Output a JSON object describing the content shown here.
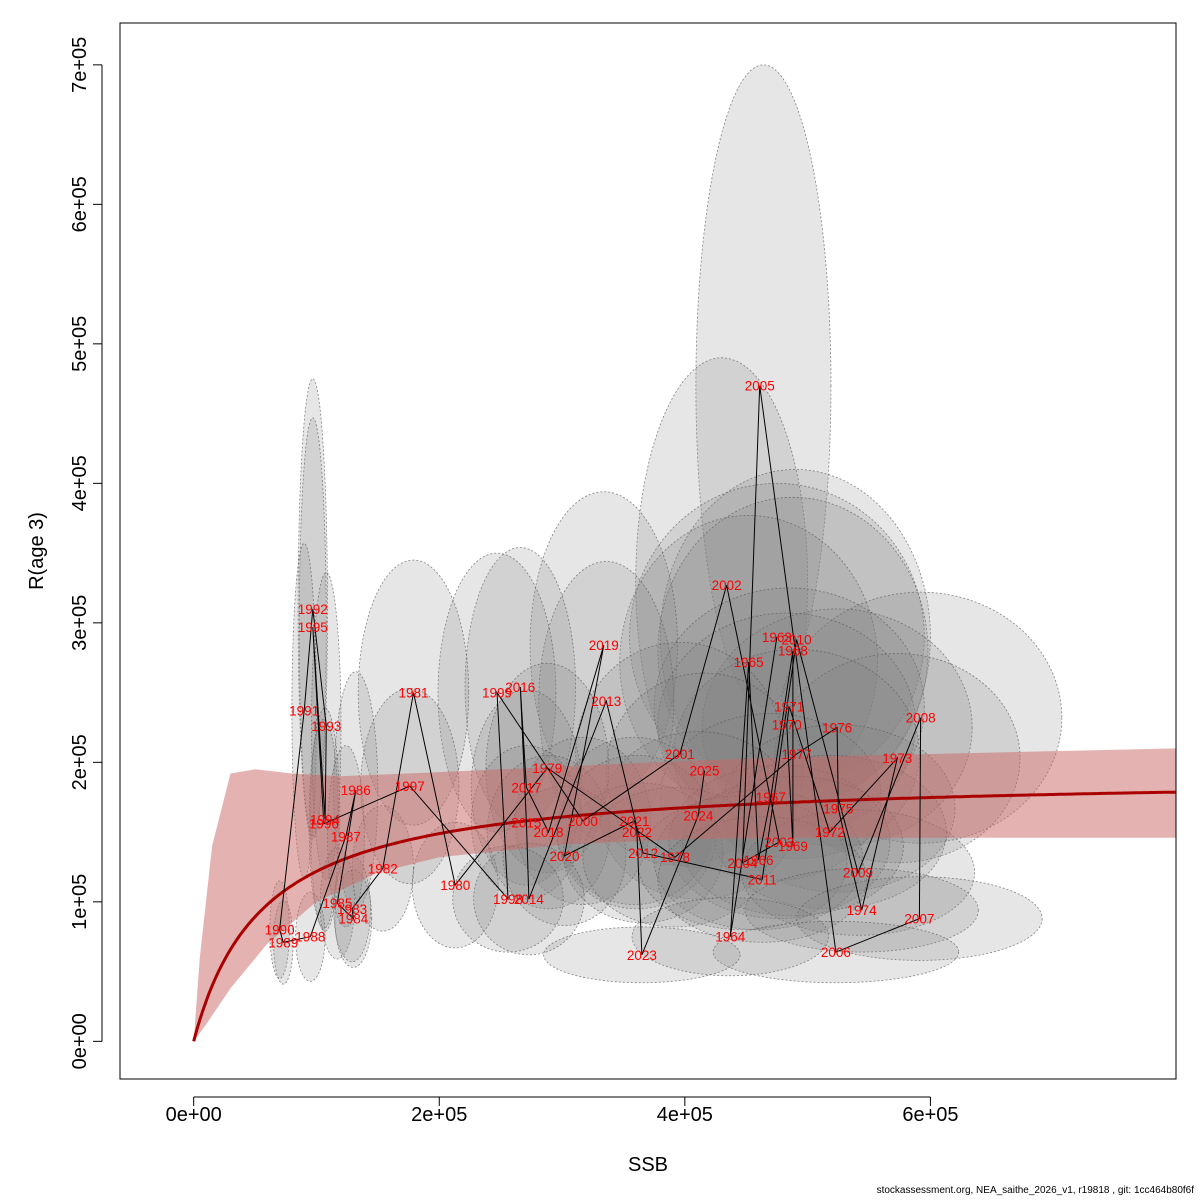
{
  "chart_data": {
    "type": "scatter",
    "xlabel": "SSB",
    "ylabel": "R(age 3)",
    "xlim": [
      -60000,
      800000
    ],
    "ylim": [
      -27000,
      730000
    ],
    "x_ticks": [
      0,
      200000,
      400000,
      600000
    ],
    "x_tick_labels": [
      "0e+00",
      "2e+05",
      "4e+05",
      "6e+05"
    ],
    "y_ticks": [
      0,
      100000,
      200000,
      300000,
      400000,
      500000,
      600000,
      700000
    ],
    "y_tick_labels": [
      "0e+00",
      "1e+05",
      "2e+05",
      "3e+05",
      "4e+05",
      "5e+05",
      "6e+05",
      "7e+05"
    ],
    "colors": {
      "year_label": "#ff0000",
      "trajectory": "#000000",
      "ellipse_fill": "#808080",
      "fit_line": "#aa0000",
      "fit_band": "#cc6666"
    },
    "points": [
      {
        "year": "1963",
        "ssb": 475000,
        "r": 290000
      },
      {
        "year": "1964",
        "ssb": 437000,
        "r": 75000
      },
      {
        "year": "1965",
        "ssb": 452000,
        "r": 272000
      },
      {
        "year": "1966",
        "ssb": 460000,
        "r": 130000
      },
      {
        "year": "1967",
        "ssb": 470000,
        "r": 175000
      },
      {
        "year": "1968",
        "ssb": 488000,
        "r": 280000
      },
      {
        "year": "1969",
        "ssb": 488000,
        "r": 140000
      },
      {
        "year": "1970",
        "ssb": 483000,
        "r": 227000
      },
      {
        "year": "1971",
        "ssb": 485000,
        "r": 240000
      },
      {
        "year": "1972",
        "ssb": 518000,
        "r": 150000
      },
      {
        "year": "1973",
        "ssb": 573000,
        "r": 203000
      },
      {
        "year": "1974",
        "ssb": 544000,
        "r": 94000
      },
      {
        "year": "1975",
        "ssb": 525000,
        "r": 167000
      },
      {
        "year": "1976",
        "ssb": 524000,
        "r": 225000
      },
      {
        "year": "1977",
        "ssb": 491000,
        "r": 206000
      },
      {
        "year": "1978",
        "ssb": 392000,
        "r": 132000
      },
      {
        "year": "1979",
        "ssb": 288000,
        "r": 196000
      },
      {
        "year": "1980",
        "ssb": 213000,
        "r": 112000
      },
      {
        "year": "1981",
        "ssb": 179000,
        "r": 250000
      },
      {
        "year": "1982",
        "ssb": 154000,
        "r": 124000
      },
      {
        "year": "1983",
        "ssb": 129000,
        "r": 95000
      },
      {
        "year": "1984",
        "ssb": 130000,
        "r": 88000
      },
      {
        "year": "1985",
        "ssb": 117000,
        "r": 99000
      },
      {
        "year": "1986",
        "ssb": 132000,
        "r": 180000
      },
      {
        "year": "1987",
        "ssb": 124000,
        "r": 147000
      },
      {
        "year": "1988",
        "ssb": 95000,
        "r": 75000
      },
      {
        "year": "1989",
        "ssb": 73000,
        "r": 71000
      },
      {
        "year": "1990",
        "ssb": 70000,
        "r": 80000
      },
      {
        "year": "1991",
        "ssb": 90000,
        "r": 237000
      },
      {
        "year": "1992",
        "ssb": 97000,
        "r": 310000
      },
      {
        "year": "1993",
        "ssb": 108000,
        "r": 226000
      },
      {
        "year": "1994",
        "ssb": 107000,
        "r": 159000
      },
      {
        "year": "1995",
        "ssb": 97000,
        "r": 297000
      },
      {
        "year": "1996",
        "ssb": 106000,
        "r": 156000
      },
      {
        "year": "1997",
        "ssb": 176000,
        "r": 183000
      },
      {
        "year": "1998",
        "ssb": 256000,
        "r": 102000
      },
      {
        "year": "1999",
        "ssb": 247000,
        "r": 250000
      },
      {
        "year": "2000",
        "ssb": 317000,
        "r": 158000
      },
      {
        "year": "2001",
        "ssb": 396000,
        "r": 206000
      },
      {
        "year": "2002",
        "ssb": 434000,
        "r": 327000
      },
      {
        "year": "2003",
        "ssb": 477000,
        "r": 143000
      },
      {
        "year": "2004",
        "ssb": 447000,
        "r": 128000
      },
      {
        "year": "2005",
        "ssb": 461000,
        "r": 470000
      },
      {
        "year": "2006",
        "ssb": 523000,
        "r": 64000
      },
      {
        "year": "2007",
        "ssb": 591000,
        "r": 88000
      },
      {
        "year": "2008",
        "ssb": 592000,
        "r": 232000
      },
      {
        "year": "2009",
        "ssb": 541000,
        "r": 121000
      },
      {
        "year": "2010",
        "ssb": 491000,
        "r": 288000
      },
      {
        "year": "2011",
        "ssb": 463000,
        "r": 116000
      },
      {
        "year": "2012",
        "ssb": 366000,
        "r": 135000
      },
      {
        "year": "2013",
        "ssb": 336000,
        "r": 244000
      },
      {
        "year": "2014",
        "ssb": 273000,
        "r": 102000
      },
      {
        "year": "2015",
        "ssb": 271000,
        "r": 157000
      },
      {
        "year": "2016",
        "ssb": 266000,
        "r": 254000
      },
      {
        "year": "2017",
        "ssb": 271000,
        "r": 182000
      },
      {
        "year": "2018",
        "ssb": 289000,
        "r": 150000
      },
      {
        "year": "2019",
        "ssb": 334000,
        "r": 284000
      },
      {
        "year": "2020",
        "ssb": 302000,
        "r": 133000
      },
      {
        "year": "2021",
        "ssb": 359000,
        "r": 158000
      },
      {
        "year": "2022",
        "ssb": 361000,
        "r": 150000
      },
      {
        "year": "2023",
        "ssb": 365000,
        "r": 62000
      },
      {
        "year": "2024",
        "ssb": 411000,
        "r": 162000
      },
      {
        "year": "2025",
        "ssb": 416000,
        "r": 194000
      }
    ],
    "ellipses": [
      {
        "year": "2005",
        "ssb": 464000,
        "r": 470000,
        "sx": 55000,
        "sy": 230000
      },
      {
        "year": "2002",
        "ssb": 430000,
        "r": 330000,
        "sx": 70000,
        "sy": 160000
      },
      {
        "year": "2010",
        "ssb": 490000,
        "r": 290000,
        "sx": 110000,
        "sy": 120000
      },
      {
        "year": "1963",
        "ssb": 475000,
        "r": 290000,
        "sx": 120000,
        "sy": 110000
      },
      {
        "year": "1968",
        "ssb": 488000,
        "r": 280000,
        "sx": 110000,
        "sy": 110000
      },
      {
        "year": "1965",
        "ssb": 452000,
        "r": 272000,
        "sx": 105000,
        "sy": 105000
      },
      {
        "year": "2019",
        "ssb": 334000,
        "r": 284000,
        "sx": 60000,
        "sy": 110000
      },
      {
        "year": "2008",
        "ssb": 592000,
        "r": 232000,
        "sx": 115000,
        "sy": 90000
      },
      {
        "year": "1976",
        "ssb": 524000,
        "r": 225000,
        "sx": 110000,
        "sy": 85000
      },
      {
        "year": "1971",
        "ssb": 485000,
        "r": 240000,
        "sx": 110000,
        "sy": 85000
      },
      {
        "year": "1970",
        "ssb": 483000,
        "r": 227000,
        "sx": 105000,
        "sy": 80000
      },
      {
        "year": "2013",
        "ssb": 336000,
        "r": 244000,
        "sx": 55000,
        "sy": 100000
      },
      {
        "year": "2016",
        "ssb": 266000,
        "r": 254000,
        "sx": 45000,
        "sy": 100000
      },
      {
        "year": "1999",
        "ssb": 247000,
        "r": 250000,
        "sx": 48000,
        "sy": 100000
      },
      {
        "year": "1981",
        "ssb": 179000,
        "r": 250000,
        "sx": 45000,
        "sy": 95000
      },
      {
        "year": "1973",
        "ssb": 573000,
        "r": 203000,
        "sx": 100000,
        "sy": 75000
      },
      {
        "year": "1977",
        "ssb": 491000,
        "r": 206000,
        "sx": 100000,
        "sy": 75000
      },
      {
        "year": "2001",
        "ssb": 396000,
        "r": 206000,
        "sx": 85000,
        "sy": 80000
      },
      {
        "year": "2025",
        "ssb": 416000,
        "r": 194000,
        "sx": 80000,
        "sy": 70000
      },
      {
        "year": "1979",
        "ssb": 288000,
        "r": 196000,
        "sx": 50000,
        "sy": 75000
      },
      {
        "year": "2017",
        "ssb": 271000,
        "r": 182000,
        "sx": 45000,
        "sy": 70000
      },
      {
        "year": "1997",
        "ssb": 176000,
        "r": 183000,
        "sx": 40000,
        "sy": 70000
      },
      {
        "year": "1992",
        "ssb": 97000,
        "r": 310000,
        "sx": 12000,
        "sy": 165000
      },
      {
        "year": "1995",
        "ssb": 97000,
        "r": 297000,
        "sx": 11000,
        "sy": 150000
      },
      {
        "year": "1991",
        "ssb": 90000,
        "r": 237000,
        "sx": 10000,
        "sy": 120000
      },
      {
        "year": "1993",
        "ssb": 108000,
        "r": 226000,
        "sx": 12000,
        "sy": 110000
      },
      {
        "year": "1986",
        "ssb": 132000,
        "r": 180000,
        "sx": 18000,
        "sy": 85000
      },
      {
        "year": "1994",
        "ssb": 107000,
        "r": 159000,
        "sx": 12000,
        "sy": 80000
      },
      {
        "year": "1996",
        "ssb": 106000,
        "r": 156000,
        "sx": 12000,
        "sy": 75000
      },
      {
        "year": "1987",
        "ssb": 124000,
        "r": 147000,
        "sx": 15000,
        "sy": 65000
      },
      {
        "year": "1967",
        "ssb": 470000,
        "r": 175000,
        "sx": 90000,
        "sy": 60000
      },
      {
        "year": "1975",
        "ssb": 525000,
        "r": 167000,
        "sx": 95000,
        "sy": 60000
      },
      {
        "year": "2024",
        "ssb": 411000,
        "r": 162000,
        "sx": 80000,
        "sy": 60000
      },
      {
        "year": "2021",
        "ssb": 359000,
        "r": 158000,
        "sx": 65000,
        "sy": 60000
      },
      {
        "year": "2000",
        "ssb": 317000,
        "r": 158000,
        "sx": 55000,
        "sy": 60000
      },
      {
        "year": "2015",
        "ssb": 271000,
        "r": 157000,
        "sx": 45000,
        "sy": 55000
      },
      {
        "year": "2018",
        "ssb": 289000,
        "r": 150000,
        "sx": 50000,
        "sy": 55000
      },
      {
        "year": "1972",
        "ssb": 518000,
        "r": 150000,
        "sx": 95000,
        "sy": 55000
      },
      {
        "year": "2022",
        "ssb": 361000,
        "r": 150000,
        "sx": 65000,
        "sy": 55000
      },
      {
        "year": "2003",
        "ssb": 477000,
        "r": 143000,
        "sx": 90000,
        "sy": 55000
      },
      {
        "year": "1969",
        "ssb": 488000,
        "r": 140000,
        "sx": 90000,
        "sy": 50000
      },
      {
        "year": "2012",
        "ssb": 366000,
        "r": 135000,
        "sx": 65000,
        "sy": 50000
      },
      {
        "year": "2020",
        "ssb": 302000,
        "r": 133000,
        "sx": 50000,
        "sy": 50000
      },
      {
        "year": "1978",
        "ssb": 392000,
        "r": 132000,
        "sx": 75000,
        "sy": 50000
      },
      {
        "year": "1966",
        "ssb": 460000,
        "r": 130000,
        "sx": 85000,
        "sy": 50000
      },
      {
        "year": "2004",
        "ssb": 447000,
        "r": 128000,
        "sx": 85000,
        "sy": 48000
      },
      {
        "year": "1982",
        "ssb": 154000,
        "r": 124000,
        "sx": 25000,
        "sy": 45000
      },
      {
        "year": "2009",
        "ssb": 541000,
        "r": 121000,
        "sx": 95000,
        "sy": 45000
      },
      {
        "year": "2011",
        "ssb": 463000,
        "r": 116000,
        "sx": 85000,
        "sy": 45000
      },
      {
        "year": "1980",
        "ssb": 213000,
        "r": 112000,
        "sx": 35000,
        "sy": 45000
      },
      {
        "year": "2014",
        "ssb": 273000,
        "r": 102000,
        "sx": 45000,
        "sy": 40000
      },
      {
        "year": "1998",
        "ssb": 256000,
        "r": 102000,
        "sx": 45000,
        "sy": 38000
      },
      {
        "year": "1985",
        "ssb": 117000,
        "r": 99000,
        "sx": 14000,
        "sy": 40000
      },
      {
        "year": "1983",
        "ssb": 129000,
        "r": 95000,
        "sx": 15000,
        "sy": 38000
      },
      {
        "year": "1974",
        "ssb": 544000,
        "r": 94000,
        "sx": 95000,
        "sy": 30000
      },
      {
        "year": "1984",
        "ssb": 130000,
        "r": 88000,
        "sx": 15000,
        "sy": 35000
      },
      {
        "year": "2007",
        "ssb": 591000,
        "r": 88000,
        "sx": 100000,
        "sy": 30000
      },
      {
        "year": "1990",
        "ssb": 70000,
        "r": 80000,
        "sx": 8000,
        "sy": 35000
      },
      {
        "year": "1988",
        "ssb": 95000,
        "r": 75000,
        "sx": 12000,
        "sy": 32000
      },
      {
        "year": "1964",
        "ssb": 437000,
        "r": 75000,
        "sx": 80000,
        "sy": 28000
      },
      {
        "year": "1989",
        "ssb": 73000,
        "r": 71000,
        "sx": 8000,
        "sy": 30000
      },
      {
        "year": "2006",
        "ssb": 523000,
        "r": 64000,
        "sx": 100000,
        "sy": 22000
      },
      {
        "year": "2023",
        "ssb": 365000,
        "r": 62000,
        "sx": 80000,
        "sy": 20000
      }
    ],
    "fit": {
      "model": "Beverton-Holt",
      "a": 3.35,
      "b": 1.75e-05,
      "band_upper": [
        [
          0,
          0
        ],
        [
          5000,
          60000
        ],
        [
          15000,
          140000
        ],
        [
          30000,
          192000
        ],
        [
          50000,
          195000
        ],
        [
          80000,
          192000
        ],
        [
          120000,
          190000
        ],
        [
          200000,
          193000
        ],
        [
          300000,
          197000
        ],
        [
          400000,
          201000
        ],
        [
          500000,
          204000
        ],
        [
          600000,
          206000
        ],
        [
          800000,
          210000
        ]
      ],
      "band_lower": [
        [
          0,
          0
        ],
        [
          10000,
          12000
        ],
        [
          30000,
          38000
        ],
        [
          60000,
          70000
        ],
        [
          100000,
          100000
        ],
        [
          150000,
          121000
        ],
        [
          200000,
          132000
        ],
        [
          300000,
          141000
        ],
        [
          400000,
          145000
        ],
        [
          500000,
          146000
        ],
        [
          600000,
          146000
        ],
        [
          800000,
          146000
        ]
      ]
    }
  },
  "footnote": "stockassessment.org, NEA_saithe_2026_v1, r19818 , git: 1cc464b80f6f"
}
